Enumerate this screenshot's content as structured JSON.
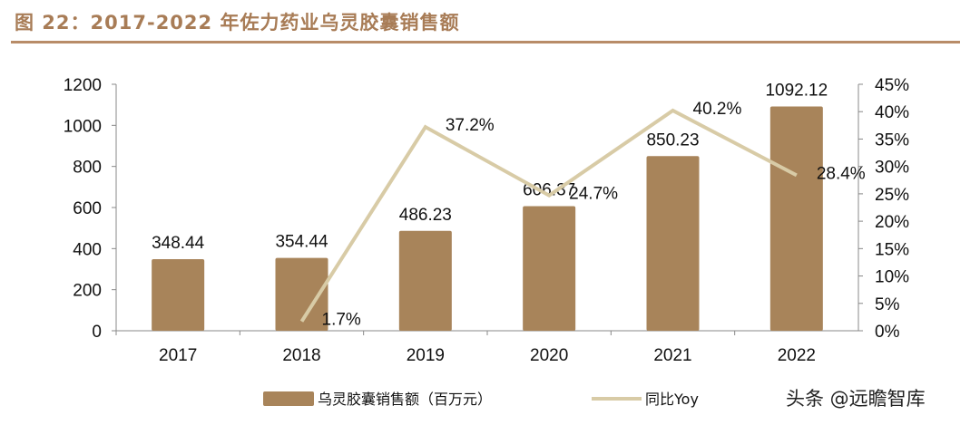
{
  "title": "图 22：2017-2022 年佐力药业乌灵胶囊销售额",
  "watermark": "头条 @远瞻智库",
  "chart_data": {
    "type": "bar+line",
    "categories": [
      "2017",
      "2018",
      "2019",
      "2020",
      "2021",
      "2022"
    ],
    "series": [
      {
        "name": "乌灵胶囊销售额（百万元）",
        "type": "bar",
        "axis": "left",
        "values": [
          348.44,
          354.44,
          486.23,
          606.37,
          850.23,
          1092.12
        ],
        "labels": [
          "348.44",
          "354.44",
          "486.23",
          "606.37",
          "850.23",
          "1092.12"
        ],
        "color": "#a8845a"
      },
      {
        "name": "同比Yoy",
        "type": "line",
        "axis": "right",
        "values": [
          null,
          1.7,
          37.2,
          24.7,
          40.2,
          28.4
        ],
        "labels": [
          "",
          "1.7%",
          "37.2%",
          "24.7%",
          "40.2%",
          "28.4%"
        ],
        "color": "#d8cba6"
      }
    ],
    "y_left": {
      "range": [
        0,
        1200
      ],
      "ticks": [
        "0",
        "200",
        "400",
        "600",
        "800",
        "1000",
        "1200"
      ]
    },
    "y_right": {
      "range": [
        0,
        45
      ],
      "ticks": [
        "0%",
        "5%",
        "10%",
        "15%",
        "20%",
        "25%",
        "30%",
        "35%",
        "40%",
        "45%"
      ]
    },
    "grid": false,
    "legend": "bottom"
  }
}
